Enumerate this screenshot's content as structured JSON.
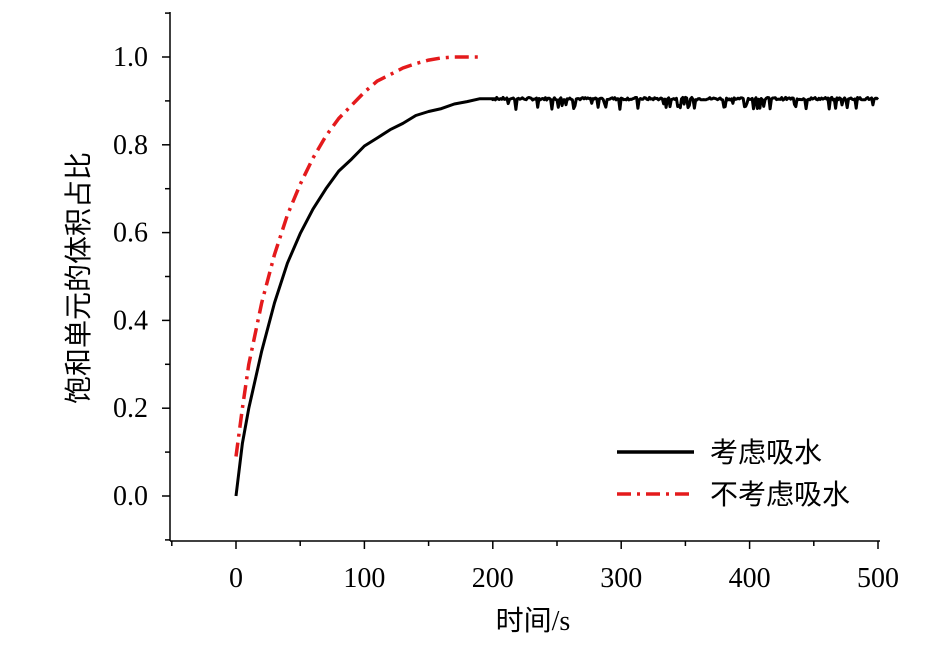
{
  "chart_data": {
    "type": "line",
    "title": "",
    "xlabel": "时间/s",
    "ylabel": "饱和单元的体积占比",
    "xlim": [
      -50,
      500
    ],
    "ylim": [
      -0.1,
      1.1
    ],
    "x_ticks": [
      0,
      100,
      200,
      300,
      400,
      500
    ],
    "x_tick_labels": [
      "0",
      "100",
      "200",
      "300",
      "400",
      "500"
    ],
    "y_ticks": [
      0.0,
      0.2,
      0.4,
      0.6,
      0.8,
      1.0
    ],
    "y_tick_labels": [
      "0.0",
      "0.2",
      "0.4",
      "0.6",
      "0.8",
      "1.0"
    ],
    "grid": false,
    "legend_position": "bottom-right",
    "series": [
      {
        "name": "考虑吸水",
        "color": "#000000",
        "style": "solid",
        "x": [
          0,
          5,
          10,
          20,
          30,
          40,
          50,
          60,
          70,
          80,
          90,
          100,
          110,
          120,
          130,
          140,
          150,
          160,
          170,
          180,
          190,
          200,
          250,
          300,
          350,
          400,
          450,
          500
        ],
        "y": [
          0.0,
          0.12,
          0.2,
          0.33,
          0.44,
          0.53,
          0.6,
          0.655,
          0.7,
          0.74,
          0.77,
          0.795,
          0.815,
          0.835,
          0.85,
          0.865,
          0.875,
          0.885,
          0.893,
          0.9,
          0.904,
          0.905,
          0.905,
          0.905,
          0.905,
          0.905,
          0.905,
          0.905
        ],
        "noise_range_after_200": [
          0.88,
          0.91
        ]
      },
      {
        "name": "不考虑吸水",
        "color": "#e41a1c",
        "style": "dash-dot",
        "x": [
          0,
          5,
          10,
          20,
          30,
          40,
          50,
          60,
          70,
          80,
          90,
          100,
          110,
          120,
          130,
          140,
          150,
          160,
          170,
          180,
          190
        ],
        "y": [
          0.09,
          0.2,
          0.3,
          0.44,
          0.55,
          0.64,
          0.71,
          0.77,
          0.82,
          0.86,
          0.89,
          0.92,
          0.945,
          0.96,
          0.975,
          0.985,
          0.993,
          0.998,
          1.0,
          1.0,
          1.0
        ]
      }
    ]
  }
}
